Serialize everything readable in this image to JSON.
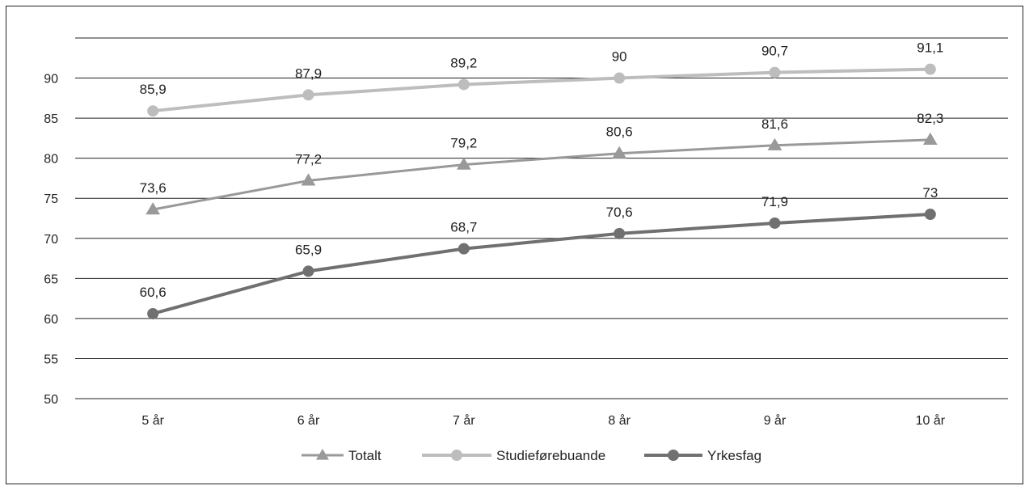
{
  "chart_data": {
    "type": "line",
    "categories": [
      "5 år",
      "6 år",
      "7 år",
      "8 år",
      "9 år",
      "10 år"
    ],
    "ylim": [
      50,
      95
    ],
    "yticks": [
      50,
      55,
      60,
      65,
      70,
      75,
      80,
      85,
      90
    ],
    "grid": true,
    "legend_position": "bottom-center",
    "series": [
      {
        "name": "Totalt",
        "values": [
          73.6,
          77.2,
          79.2,
          80.6,
          81.6,
          82.3
        ],
        "labels": [
          "73,6",
          "77,2",
          "79,2",
          "80,6",
          "81,6",
          "82,3"
        ],
        "marker": "triangle",
        "color": "#999999"
      },
      {
        "name": "Studieførebuande",
        "values": [
          85.9,
          87.9,
          89.2,
          90.0,
          90.7,
          91.1
        ],
        "labels": [
          "85,9",
          "87,9",
          "89,2",
          "90",
          "90,7",
          "91,1"
        ],
        "marker": "circle",
        "color": "#bdbdbd"
      },
      {
        "name": "Yrkesfag",
        "values": [
          60.6,
          65.9,
          68.7,
          70.6,
          71.9,
          73.0
        ],
        "labels": [
          "60,6",
          "65,9",
          "68,7",
          "70,6",
          "71,9",
          "73"
        ],
        "marker": "circle",
        "color": "#707070"
      }
    ]
  }
}
